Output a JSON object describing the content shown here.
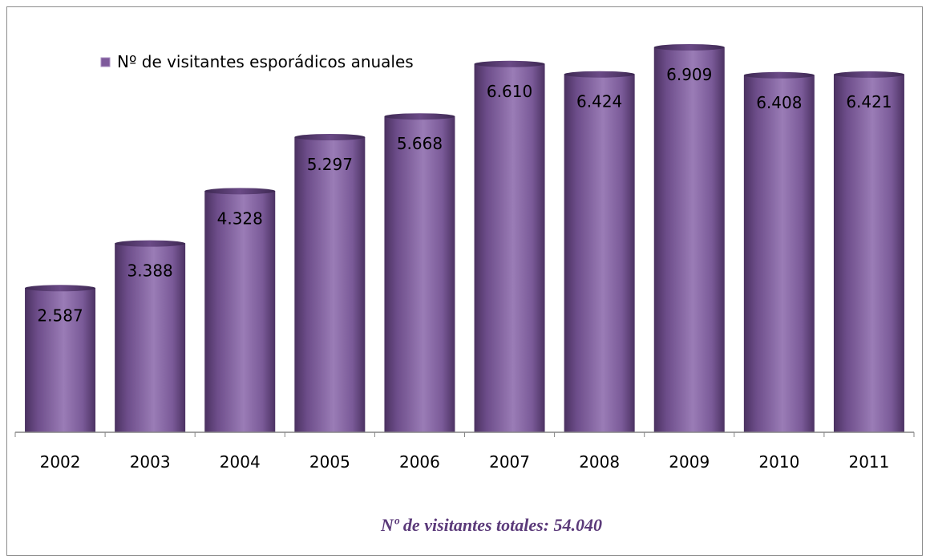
{
  "chart_data": {
    "type": "bar",
    "categories": [
      "2002",
      "2003",
      "2004",
      "2005",
      "2006",
      "2007",
      "2008",
      "2009",
      "2010",
      "2011"
    ],
    "series": [
      {
        "name": "Nº de visitantes esporádicos anuales",
        "values": [
          2587,
          3388,
          4328,
          5297,
          5668,
          6610,
          6424,
          6909,
          6408,
          6421
        ],
        "labels": [
          "2.587",
          "3.388",
          "4.328",
          "5.297",
          "5.668",
          "6.610",
          "6.424",
          "6.909",
          "6.408",
          "6.421"
        ]
      }
    ],
    "title": "",
    "xlabel": "",
    "ylabel": "",
    "ylim": [
      0,
      7000
    ],
    "grid": false,
    "legend_position": "top-left",
    "bar_color": "#7e5a9b",
    "note": "Nº  de visitantes totales: 54.040",
    "note_color": "#5b3a7a"
  }
}
